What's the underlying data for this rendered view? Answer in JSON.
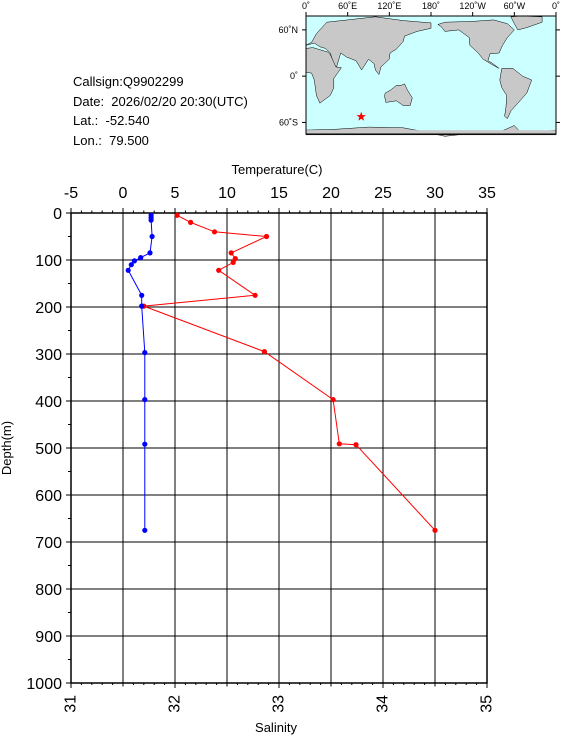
{
  "info": {
    "callsign": "Callsign:Q9902299",
    "date": "Date:  2026/02/20 20:30(UTC)",
    "lat": "Lat.:  -52.540",
    "lon": "Lon.:  79.500"
  },
  "map": {
    "lon_labels": [
      "0˚",
      "60˚E",
      "120˚E",
      "180˚",
      "120˚W",
      "60˚W",
      "0˚"
    ],
    "lat_labels": [
      "60˚N",
      "0˚",
      "60˚S"
    ],
    "marker": {
      "lat": -52.54,
      "lon": 79.5
    },
    "colors": {
      "ocean": "#ccffff",
      "land": "#c8c8c8",
      "marker": "#ff0000"
    }
  },
  "chart_data": {
    "type": "line",
    "y_axis": {
      "label": "Depth(m)",
      "range": [
        0,
        1000
      ],
      "inverted": true,
      "ticks": [
        0,
        100,
        200,
        300,
        400,
        500,
        600,
        700,
        800,
        900,
        1000
      ]
    },
    "x_top": {
      "label": "Temperature(C)",
      "range": [
        -5,
        35
      ],
      "ticks": [
        -5,
        0,
        5,
        10,
        15,
        20,
        25,
        30,
        35
      ]
    },
    "x_bottom": {
      "label": "Salinity",
      "range": [
        31,
        35
      ],
      "ticks": [
        31,
        32,
        33,
        34,
        35
      ]
    },
    "grid": true,
    "series": [
      {
        "axis": "top",
        "color": "#ff0000",
        "points": [
          {
            "x": 5.2,
            "y": 5
          },
          {
            "x": 6.5,
            "y": 20
          },
          {
            "x": 8.8,
            "y": 40
          },
          {
            "x": 13.8,
            "y": 50
          },
          {
            "x": 10.4,
            "y": 85
          },
          {
            "x": 10.8,
            "y": 97
          },
          {
            "x": 10.6,
            "y": 105
          },
          {
            "x": 9.2,
            "y": 122
          },
          {
            "x": 12.7,
            "y": 175
          },
          {
            "x": 2.0,
            "y": 198
          },
          {
            "x": 13.6,
            "y": 295
          },
          {
            "x": 20.2,
            "y": 397
          },
          {
            "x": 20.8,
            "y": 491
          },
          {
            "x": 22.4,
            "y": 493
          },
          {
            "x": 30.0,
            "y": 675
          }
        ]
      },
      {
        "axis": "bottom",
        "color": "#0000ff",
        "points": [
          {
            "x": 31.77,
            "y": 5
          },
          {
            "x": 31.77,
            "y": 10
          },
          {
            "x": 31.77,
            "y": 15
          },
          {
            "x": 31.78,
            "y": 50
          },
          {
            "x": 31.76,
            "y": 85
          },
          {
            "x": 31.67,
            "y": 95
          },
          {
            "x": 31.61,
            "y": 102
          },
          {
            "x": 31.58,
            "y": 110
          },
          {
            "x": 31.55,
            "y": 122
          },
          {
            "x": 31.68,
            "y": 175
          },
          {
            "x": 31.68,
            "y": 198
          },
          {
            "x": 31.71,
            "y": 297
          },
          {
            "x": 31.71,
            "y": 397
          },
          {
            "x": 31.71,
            "y": 492
          },
          {
            "x": 31.71,
            "y": 675
          }
        ]
      }
    ]
  }
}
